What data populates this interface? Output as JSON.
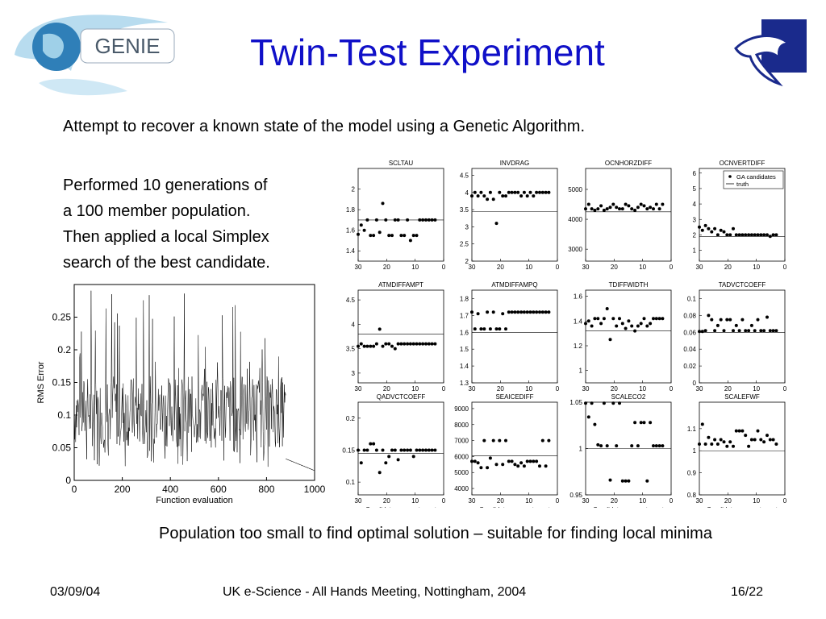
{
  "slide": {
    "title": "Twin-Test Experiment",
    "intro": "Attempt to recover a known state of the model using a Genetic Algorithm.",
    "description": [
      "Performed 10 generations of",
      "a 100 member population.",
      "Then applied a local Simplex",
      "search of the best candidate."
    ],
    "conclusion": "Population too small to find optimal solution – suitable for finding local minima",
    "footer": {
      "date": "03/09/04",
      "event": "UK e-Science - All Hands Meeting, Nottingham, 2004",
      "page": "16/22"
    },
    "logo_text": "GENIE",
    "colors": {
      "title": "#1010c8",
      "logo_bg": "#ffffff",
      "dolphin": "#1a2a8c"
    }
  },
  "chart_data": [
    {
      "type": "line",
      "xlabel": "Function evaluation",
      "ylabel": "RMS Error",
      "xlim": [
        0,
        1000
      ],
      "ylim": [
        0,
        0.3
      ],
      "xticks": [
        "0",
        "200",
        "400",
        "600",
        "800",
        "1000"
      ],
      "yticks": [
        "0",
        "0.05",
        "0.1",
        "0.15",
        "0.2",
        "0.25"
      ],
      "series_description_values": {
        "ga_phase_range": [
          0,
          880
        ],
        "ga_typical_band": [
          0.05,
          0.16
        ],
        "simplex_phase_range": [
          880,
          1000
        ],
        "simplex_start": 0.045,
        "simplex_end": 0.027
      }
    },
    {
      "type": "scatter",
      "panels": [
        {
          "title": "SCLTAU",
          "ylim": [
            1.3,
            2.2
          ],
          "yticks": [
            "1.4",
            "1.6",
            "1.8",
            "2"
          ],
          "truth": 1.7,
          "values": [
            1.56,
            1.65,
            1.6,
            1.7,
            1.55,
            1.55,
            1.7,
            1.58,
            1.86,
            1.7,
            1.55,
            1.55,
            1.7,
            1.7,
            1.55,
            1.55,
            1.7,
            1.5,
            1.55,
            1.55,
            1.7,
            1.7,
            1.7,
            1.7,
            1.7,
            1.7
          ]
        },
        {
          "title": "INVDRAG",
          "ylim": [
            2,
            4.7
          ],
          "yticks": [
            "2",
            "2.5",
            "3",
            "3.5",
            "4",
            "4.5"
          ],
          "truth": 3.45,
          "values": [
            3.9,
            4.0,
            3.9,
            4.0,
            3.9,
            3.8,
            4.0,
            3.8,
            3.1,
            4.0,
            3.9,
            3.9,
            4.0,
            4.0,
            4.0,
            4.0,
            3.9,
            4.0,
            3.9,
            4.0,
            3.9,
            4.0,
            4.0,
            4.0,
            4.0,
            4.0
          ]
        },
        {
          "title": "OCNHORZDIFF",
          "ylim": [
            2600,
            5700
          ],
          "yticks": [
            "3000",
            "4000",
            "5000"
          ],
          "truth": 4250,
          "values": [
            4350,
            4500,
            4350,
            4300,
            4350,
            4450,
            4300,
            4350,
            4400,
            4500,
            4400,
            4350,
            4350,
            4500,
            4450,
            4350,
            4300,
            4400,
            4500,
            4450,
            4350,
            4400,
            4350,
            4500,
            4350,
            4500
          ]
        },
        {
          "title": "OCNVERTDIFF",
          "ylim": [
            0.3,
            6.3
          ],
          "yticks": [
            "1",
            "2",
            "3",
            "4",
            "5",
            "6"
          ],
          "truth": 1.9,
          "values": [
            2.5,
            2.3,
            2.6,
            2.4,
            2.2,
            2.4,
            2.0,
            2.3,
            2.2,
            2.0,
            2.0,
            2.4,
            2.0,
            2.0,
            2.0,
            2.0,
            2.0,
            2.0,
            2.0,
            2.0,
            2.0,
            2.0,
            2.0,
            1.9,
            2.0,
            2.0
          ],
          "legend": [
            "GA candidates",
            "truth"
          ]
        },
        {
          "title": "ATMDIFFAMPT",
          "ylim": [
            2.8,
            4.7
          ],
          "yticks": [
            "3",
            "3.5",
            "4",
            "4.5"
          ],
          "truth": 3.8,
          "values": [
            3.55,
            3.6,
            3.55,
            3.55,
            3.55,
            3.55,
            3.6,
            3.9,
            3.55,
            3.6,
            3.6,
            3.55,
            3.5,
            3.6,
            3.6,
            3.6,
            3.6,
            3.6,
            3.6,
            3.6,
            3.6,
            3.6,
            3.6,
            3.6,
            3.6,
            3.6
          ]
        },
        {
          "title": "ATMDIFFAMPQ",
          "ylim": [
            1.3,
            1.85
          ],
          "yticks": [
            "1.3",
            "1.4",
            "1.5",
            "1.6",
            "1.7",
            "1.8"
          ],
          "truth": 1.6,
          "values": [
            1.72,
            1.62,
            1.71,
            1.62,
            1.62,
            1.72,
            1.62,
            1.72,
            1.62,
            1.62,
            1.71,
            1.62,
            1.72,
            1.72,
            1.72,
            1.72,
            1.72,
            1.72,
            1.72,
            1.72,
            1.72,
            1.72,
            1.72,
            1.72,
            1.72,
            1.72
          ]
        },
        {
          "title": "TDIFFWIDTH",
          "ylim": [
            0.9,
            1.65
          ],
          "yticks": [
            "1",
            "1.2",
            "1.4",
            "1.6"
          ],
          "truth": 1.32,
          "values": [
            1.38,
            1.4,
            1.36,
            1.42,
            1.42,
            1.38,
            1.42,
            1.5,
            1.25,
            1.42,
            1.36,
            1.42,
            1.38,
            1.34,
            1.4,
            1.36,
            1.32,
            1.36,
            1.38,
            1.42,
            1.36,
            1.38,
            1.42,
            1.42,
            1.42,
            1.42
          ]
        },
        {
          "title": "TADVCTCOEFF",
          "ylim": [
            0,
            0.11
          ],
          "yticks": [
            "0",
            "0.02",
            "0.04",
            "0.06",
            "0.08",
            "0.1"
          ],
          "truth": 0.06,
          "values": [
            0.061,
            0.061,
            0.062,
            0.08,
            0.075,
            0.062,
            0.068,
            0.075,
            0.062,
            0.075,
            0.075,
            0.062,
            0.068,
            0.062,
            0.075,
            0.062,
            0.062,
            0.068,
            0.062,
            0.075,
            0.062,
            0.062,
            0.078,
            0.062,
            0.062,
            0.062
          ]
        },
        {
          "title": "QADVCTCOEFF",
          "ylim": [
            0.08,
            0.225
          ],
          "yticks": [
            "0.1",
            "0.15",
            "0.2"
          ],
          "truth": 0.145,
          "values": [
            0.15,
            0.13,
            0.15,
            0.15,
            0.16,
            0.16,
            0.15,
            0.115,
            0.15,
            0.13,
            0.14,
            0.15,
            0.15,
            0.135,
            0.15,
            0.15,
            0.15,
            0.15,
            0.14,
            0.15,
            0.15,
            0.15,
            0.15,
            0.15,
            0.15,
            0.15
          ]
        },
        {
          "title": "SEAICEDIFF",
          "ylim": [
            3600,
            9400
          ],
          "yticks": [
            "4000",
            "5000",
            "6000",
            "7000",
            "8000",
            "9000"
          ],
          "truth": 6050,
          "values": [
            5700,
            5700,
            5600,
            5300,
            7000,
            5300,
            5900,
            7000,
            5500,
            7000,
            5500,
            7000,
            5700,
            5700,
            5500,
            5400,
            5600,
            5400,
            5700,
            5700,
            5700,
            5700,
            5400,
            7000,
            5400,
            7000
          ]
        },
        {
          "title": "SCALECO2",
          "ylim": [
            0.95,
            1.05
          ],
          "yticks": [
            "0.95",
            "1",
            "1.05"
          ],
          "truth": 1.0,
          "values": [
            1.049,
            1.034,
            1.049,
            1.026,
            1.004,
            1.003,
            1.049,
            1.003,
            0.966,
            1.049,
            1.003,
            1.049,
            0.965,
            0.965,
            0.965,
            1.003,
            1.028,
            1.003,
            1.028,
            1.028,
            0.965,
            1.028,
            1.003,
            1.003,
            1.003,
            1.003
          ]
        },
        {
          "title": "SCALEFWF",
          "ylim": [
            0.8,
            1.22
          ],
          "yticks": [
            "0.8",
            "0.9",
            "1",
            "1.1"
          ],
          "truth": 1.0,
          "values": [
            1.03,
            1.12,
            1.03,
            1.06,
            1.03,
            1.05,
            1.03,
            1.05,
            1.04,
            1.02,
            1.04,
            1.02,
            1.09,
            1.09,
            1.09,
            1.07,
            1.02,
            1.05,
            1.05,
            1.09,
            1.05,
            1.04,
            1.07,
            1.05,
            1.05,
            1.03
          ]
        }
      ],
      "xlim": [
        30,
        0
      ],
      "xticks": [
        "30",
        "20",
        "10",
        "0"
      ],
      "xlabel": "Candidate parameter set"
    }
  ]
}
